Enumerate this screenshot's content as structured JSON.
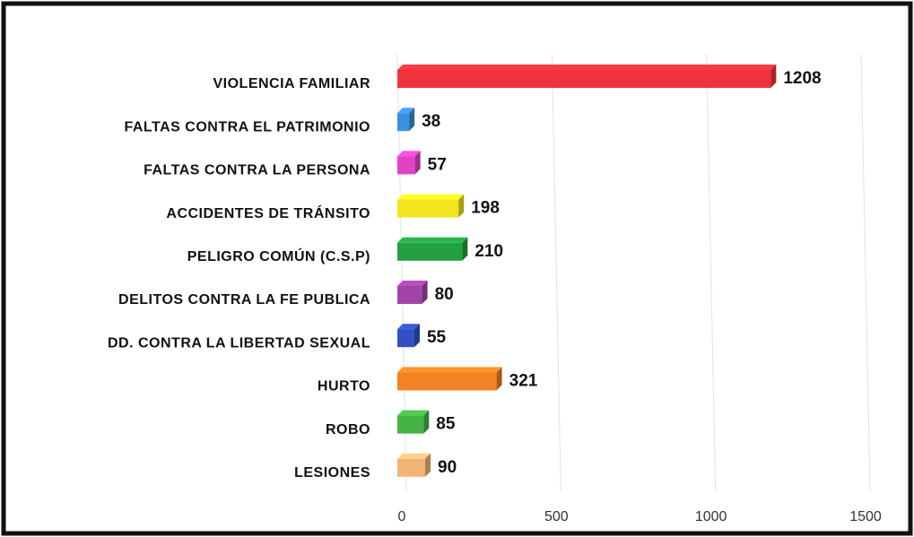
{
  "chart_data": {
    "type": "bar",
    "orientation": "horizontal",
    "categories": [
      "VIOLENCIA FAMILIAR",
      "FALTAS CONTRA EL PATRIMONIO",
      "FALTAS CONTRA LA PERSONA",
      "ACCIDENTES DE TRÁNSITO",
      "PELIGRO COMÚN (C.S.P)",
      "DELITOS CONTRA LA FE PUBLICA",
      "DD. CONTRA LA LIBERTAD SEXUAL",
      "HURTO",
      "ROBO",
      "LESIONES"
    ],
    "values": [
      1208,
      38,
      57,
      198,
      210,
      80,
      55,
      321,
      85,
      90
    ],
    "colors": [
      "#f0323c",
      "#3b8fe0",
      "#e042c4",
      "#f2e41e",
      "#22a042",
      "#a244a6",
      "#3350c2",
      "#f28222",
      "#44b244",
      "#f0b574"
    ],
    "xlim": [
      0,
      1500
    ],
    "xticks": [
      0,
      500,
      1000,
      1500
    ],
    "grid": true
  }
}
